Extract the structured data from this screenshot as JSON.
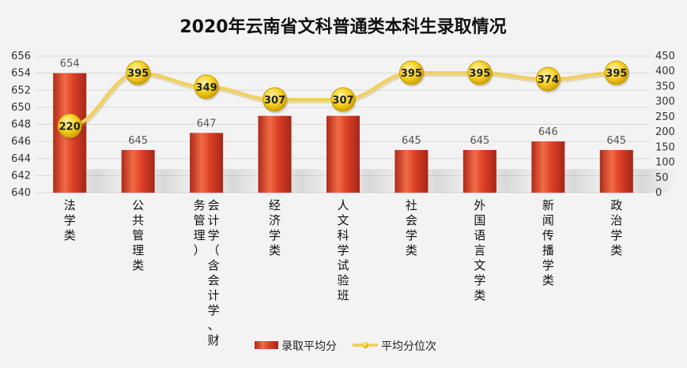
{
  "chart_data": {
    "type": "bar",
    "title": "2020年云南省文科普通类本科生录取情况",
    "categories": [
      "法学类",
      "公共管理类",
      "会计学（含会计学、财务管理）",
      "经济学类",
      "人文科学试验班",
      "社会学类",
      "外国语言文学类",
      "新闻传播学类",
      "政治学类"
    ],
    "category_lines": [
      [
        "法学类"
      ],
      [
        "公共管理类"
      ],
      [
        "会计学（含会计学、财",
        "务管理）"
      ],
      [
        "经济学类"
      ],
      [
        "人文科学试验班"
      ],
      [
        "社会学类"
      ],
      [
        "外国语言文学类"
      ],
      [
        "新闻传播学类"
      ],
      [
        "政治学类"
      ]
    ],
    "series": [
      {
        "name": "录取平均分",
        "type": "bar",
        "axis": "left",
        "values": [
          654,
          645,
          647,
          649,
          649,
          645,
          645,
          646,
          645
        ]
      },
      {
        "name": "平均分位次",
        "type": "line",
        "axis": "right",
        "values": [
          220,
          395,
          349,
          307,
          307,
          395,
          395,
          374,
          395
        ]
      }
    ],
    "left_axis": {
      "min": 640,
      "max": 656,
      "step": 2,
      "ticks": [
        "640",
        "642",
        "644",
        "646",
        "648",
        "650",
        "652",
        "654",
        "656"
      ]
    },
    "right_axis": {
      "min": 0,
      "max": 450,
      "step": 50,
      "ticks": [
        "0",
        "50",
        "100",
        "150",
        "200",
        "250",
        "300",
        "350",
        "400",
        "450"
      ]
    },
    "grid": true,
    "legend_position": "bottom",
    "colors": {
      "bar": "#d63a22",
      "bar_dark": "#a8281a",
      "bar_light": "#f07a52",
      "line": "#f2d060",
      "marker": "#f3cc1c",
      "marker_edge": "#c79a00"
    }
  }
}
